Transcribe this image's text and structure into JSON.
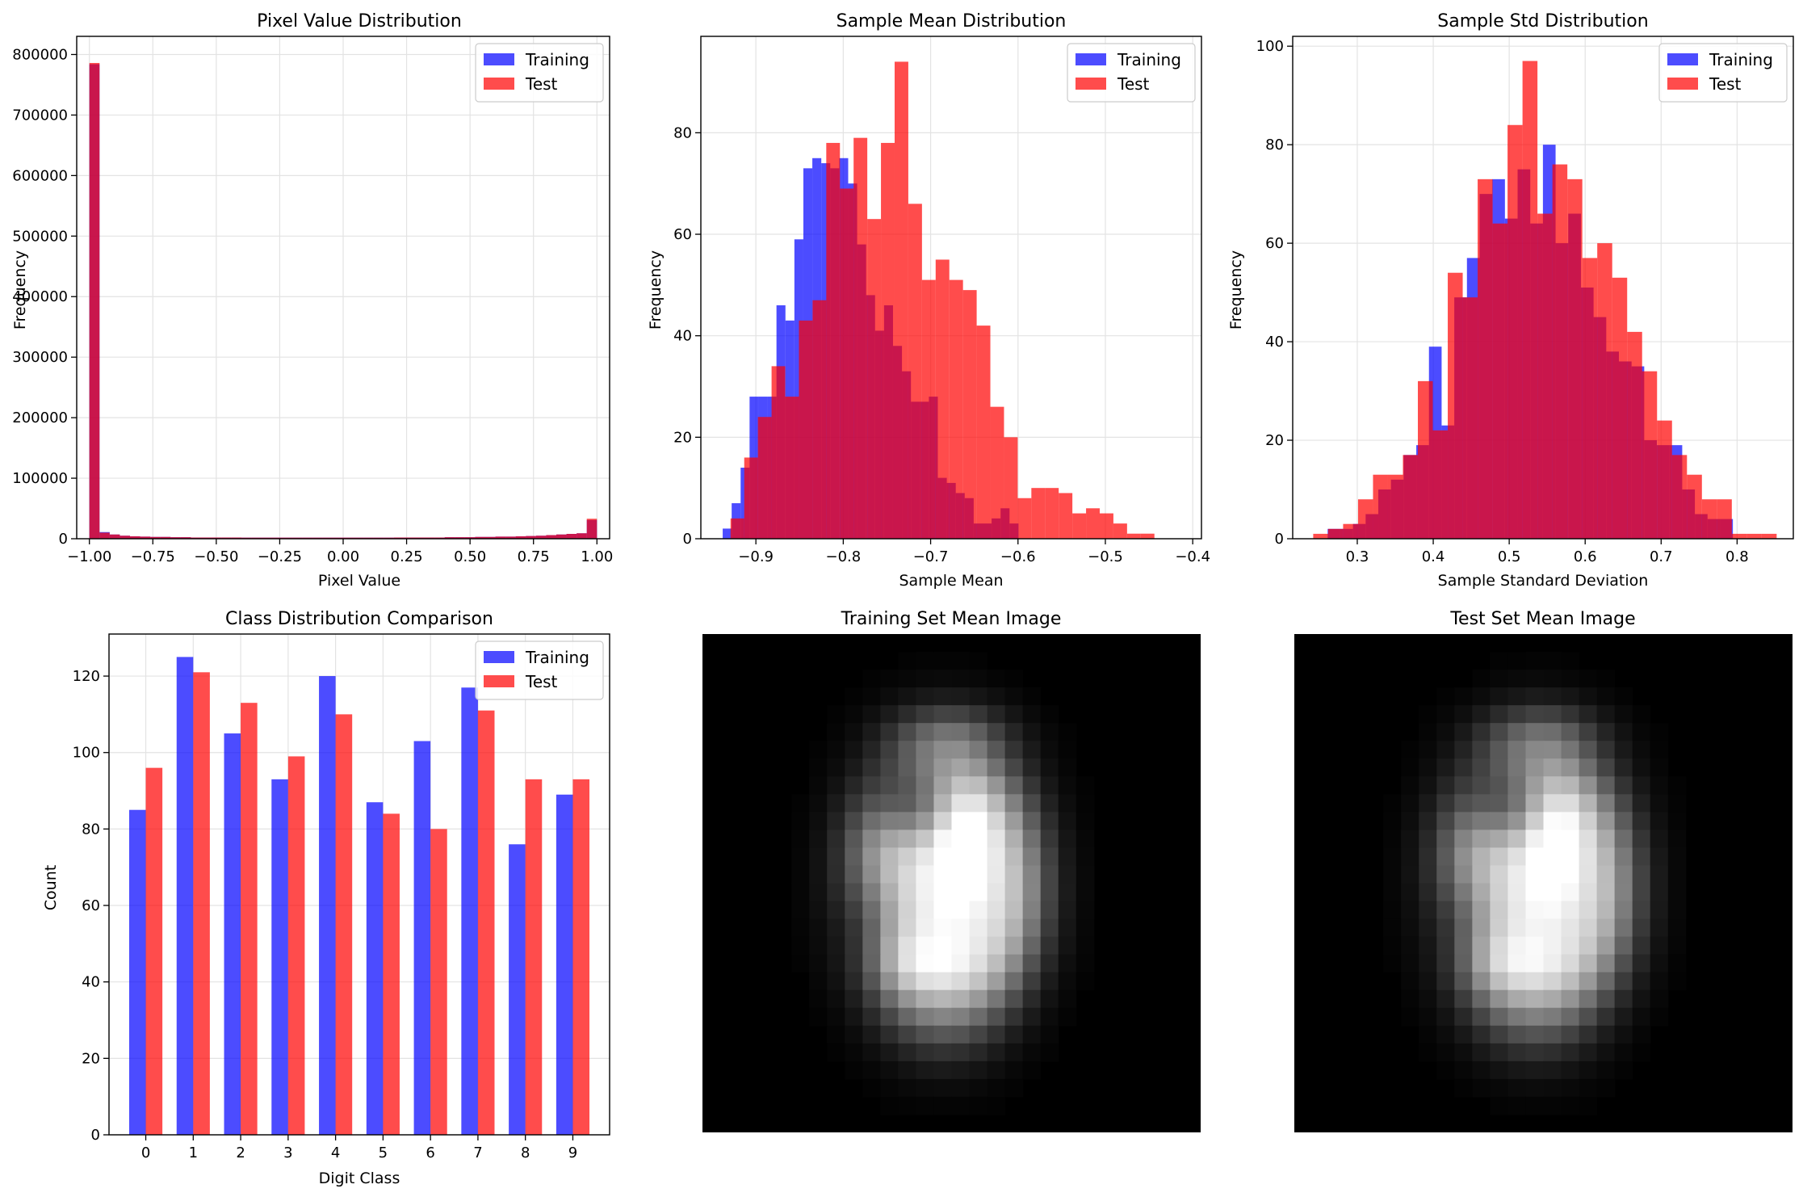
{
  "figure": {
    "background": "#ffffff"
  },
  "colors": {
    "training": "#0000ff",
    "test": "#ff0000",
    "alpha": 0.7
  },
  "chart_data": [
    {
      "id": "pixel",
      "type": "bar",
      "subtype": "histogram",
      "title": "Pixel Value Distribution",
      "xlabel": "Pixel Value",
      "ylabel": "Frequency",
      "xlim": [
        -1.05,
        1.05
      ],
      "ylim": [
        0,
        830000
      ],
      "xticks": [
        -1.0,
        -0.75,
        -0.5,
        -0.25,
        0.0,
        0.25,
        0.5,
        0.75,
        1.0
      ],
      "xtick_labels": [
        "−1.00",
        "−0.75",
        "−0.50",
        "−0.25",
        "0.00",
        "0.25",
        "0.50",
        "0.75",
        "1.00"
      ],
      "yticks": [
        0,
        100000,
        200000,
        300000,
        400000,
        500000,
        600000,
        700000,
        800000
      ],
      "ytick_labels": [
        "0",
        "100000",
        "200000",
        "300000",
        "400000",
        "500000",
        "600000",
        "700000",
        "800000"
      ],
      "grid": true,
      "legend": "top-right",
      "bin_start": -1.0,
      "bin_width": 0.04,
      "series": [
        {
          "name": "Training",
          "values": [
            784000,
            11000,
            7000,
            5000,
            4000,
            3500,
            3000,
            3000,
            2500,
            2500,
            2000,
            2000,
            2000,
            2000,
            2000,
            1800,
            1800,
            1800,
            1800,
            1800,
            1800,
            1800,
            1800,
            1800,
            1800,
            1800,
            1800,
            1800,
            1800,
            1800,
            2000,
            2000,
            2000,
            2000,
            2000,
            2500,
            2500,
            2500,
            3000,
            3000,
            3500,
            3500,
            4000,
            4500,
            5000,
            6000,
            7000,
            8000,
            9000,
            31000
          ]
        },
        {
          "name": "Test",
          "values": [
            786000,
            10000,
            7000,
            5000,
            4000,
            3500,
            3000,
            3000,
            2500,
            2500,
            2000,
            2000,
            2000,
            2000,
            2000,
            1800,
            1800,
            1800,
            1800,
            1800,
            1800,
            1800,
            1800,
            1800,
            1800,
            1800,
            1800,
            1800,
            1800,
            1800,
            2000,
            2000,
            2000,
            2000,
            2000,
            2500,
            2500,
            2500,
            3000,
            3000,
            3500,
            3500,
            4000,
            4500,
            5000,
            6000,
            7000,
            8000,
            9000,
            33000
          ]
        }
      ]
    },
    {
      "id": "mean",
      "type": "bar",
      "subtype": "histogram",
      "title": "Sample Mean Distribution",
      "xlabel": "Sample Mean",
      "ylabel": "Frequency",
      "xlim": [
        -0.963,
        -0.39
      ],
      "ylim": [
        0,
        99
      ],
      "xticks": [
        -0.9,
        -0.8,
        -0.7,
        -0.6,
        -0.5,
        -0.4
      ],
      "xtick_labels": [
        "−0.9",
        "−0.8",
        "−0.7",
        "−0.6",
        "−0.5",
        "−0.4"
      ],
      "yticks": [
        0,
        20,
        40,
        60,
        80
      ],
      "ytick_labels": [
        "0",
        "20",
        "40",
        "60",
        "80"
      ],
      "grid": true,
      "legend": "top-right",
      "series": [
        {
          "name": "Training",
          "bin_start": -0.938,
          "bin_width": 0.01026,
          "values": [
            2,
            7,
            14,
            28,
            28,
            28,
            46,
            43,
            59,
            73,
            75,
            74,
            73,
            75,
            70,
            58,
            48,
            41,
            46,
            38,
            33,
            27,
            27,
            28,
            12,
            11,
            9,
            8,
            3,
            3,
            4,
            6,
            3
          ]
        },
        {
          "name": "Test",
          "bin_start": -0.929,
          "bin_width": 0.01565,
          "values": [
            4,
            16,
            24,
            34,
            28,
            43,
            47,
            78,
            69,
            79,
            63,
            78,
            94,
            66,
            51,
            55,
            51,
            49,
            42,
            26,
            20,
            8,
            10,
            10,
            9,
            5,
            6,
            5,
            3,
            1,
            1
          ]
        }
      ]
    },
    {
      "id": "std",
      "type": "bar",
      "subtype": "histogram",
      "title": "Sample Std Distribution",
      "xlabel": "Sample Standard Deviation",
      "ylabel": "Frequency",
      "xlim": [
        0.215,
        0.874
      ],
      "ylim": [
        0,
        102
      ],
      "xticks": [
        0.3,
        0.4,
        0.5,
        0.6,
        0.7,
        0.8
      ],
      "xtick_labels": [
        "0.3",
        "0.4",
        "0.5",
        "0.6",
        "0.7",
        "0.8"
      ],
      "yticks": [
        0,
        20,
        40,
        60,
        80,
        100
      ],
      "ytick_labels": [
        "0",
        "20",
        "40",
        "60",
        "80",
        "100"
      ],
      "grid": true,
      "legend": "top-right",
      "series": [
        {
          "name": "Training",
          "bin_start": 0.261,
          "bin_width": 0.01667,
          "values": [
            2,
            2,
            3,
            5,
            10,
            12,
            17,
            19,
            39,
            23,
            49,
            57,
            70,
            73,
            65,
            75,
            64,
            80,
            60,
            66,
            51,
            45,
            38,
            36,
            35,
            20,
            19,
            19,
            10,
            5,
            4,
            4
          ]
        },
        {
          "name": "Test",
          "bin_start": 0.242,
          "bin_width": 0.01968,
          "values": [
            1,
            2,
            3,
            8,
            13,
            13,
            17,
            32,
            22,
            54,
            49,
            73,
            64,
            84,
            97,
            66,
            76,
            73,
            57,
            60,
            53,
            42,
            34,
            24,
            17,
            13,
            8,
            8,
            1,
            1,
            1
          ]
        }
      ]
    },
    {
      "id": "class",
      "type": "bar",
      "title": "Class Distribution Comparison",
      "xlabel": "Digit Class",
      "ylabel": "Count",
      "categories": [
        "0",
        "1",
        "2",
        "3",
        "4",
        "5",
        "6",
        "7",
        "8",
        "9"
      ],
      "ylim": [
        0,
        131
      ],
      "yticks": [
        0,
        20,
        40,
        60,
        80,
        100,
        120
      ],
      "ytick_labels": [
        "0",
        "20",
        "40",
        "60",
        "80",
        "100",
        "120"
      ],
      "grid": true,
      "legend": "top-right",
      "series": [
        {
          "name": "Training",
          "values": [
            85,
            125,
            105,
            93,
            120,
            87,
            103,
            117,
            76,
            89
          ]
        },
        {
          "name": "Test",
          "values": [
            96,
            121,
            113,
            99,
            110,
            84,
            80,
            111,
            93,
            93
          ]
        }
      ]
    },
    {
      "id": "train-mean-image",
      "type": "heatmap",
      "title": "Training Set Mean Image",
      "colormap": "gray",
      "shape": [
        28,
        28
      ]
    },
    {
      "id": "test-mean-image",
      "type": "heatmap",
      "title": "Test Set Mean Image",
      "colormap": "gray",
      "shape": [
        28,
        28
      ]
    }
  ]
}
